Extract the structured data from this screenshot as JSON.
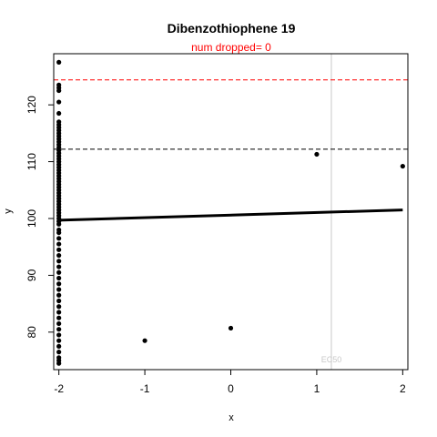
{
  "chart_data": {
    "type": "scatter",
    "title": "Dibenzothiophene 19",
    "subtitle": "num dropped= 0",
    "xlabel": "x",
    "ylabel": "y",
    "xlim": [
      -2.06,
      2.06
    ],
    "ylim": [
      73.4,
      129.0
    ],
    "x_ticks": [
      -2,
      -1,
      0,
      1,
      2
    ],
    "x_tick_labels": [
      "-2",
      "-1",
      "0",
      "1",
      "2"
    ],
    "y_ticks": [
      80,
      90,
      100,
      110,
      120
    ],
    "y_tick_labels": [
      "80",
      "90",
      "100",
      "110",
      "120"
    ],
    "grid": false,
    "legend": "none",
    "colors": {
      "points": "#000000",
      "fit_line": "#000000",
      "upper_threshold": "#ff0000",
      "lower_threshold": "#000000",
      "ec50_line": "#c8c8c8",
      "subtitle": "#ff0000"
    },
    "reference_lines": {
      "upper_dashed_y": 124.4,
      "lower_dashed_y": 112.2,
      "ec50_x": 1.17,
      "ec50_label": "EC50"
    },
    "fit_line": {
      "x": [
        -2,
        2
      ],
      "y": [
        99.7,
        101.5
      ]
    },
    "points": [
      {
        "x": -2,
        "y": 127.5
      },
      {
        "x": -2,
        "y": 123.5
      },
      {
        "x": -2,
        "y": 123.0
      },
      {
        "x": -2,
        "y": 122.5
      },
      {
        "x": -2,
        "y": 120.5
      },
      {
        "x": -2,
        "y": 118.5
      },
      {
        "x": -2,
        "y": 117.0
      },
      {
        "x": -2,
        "y": 116.5
      },
      {
        "x": -2,
        "y": 116.0
      },
      {
        "x": -2,
        "y": 115.5
      },
      {
        "x": -2,
        "y": 115.0
      },
      {
        "x": -2,
        "y": 114.5
      },
      {
        "x": -2,
        "y": 114.0
      },
      {
        "x": -2,
        "y": 113.5
      },
      {
        "x": -2,
        "y": 113.0
      },
      {
        "x": -2,
        "y": 112.5
      },
      {
        "x": -2,
        "y": 112.0
      },
      {
        "x": -2,
        "y": 111.5
      },
      {
        "x": -2,
        "y": 111.0
      },
      {
        "x": -2,
        "y": 110.5
      },
      {
        "x": -2,
        "y": 110.0
      },
      {
        "x": -2,
        "y": 109.5
      },
      {
        "x": -2,
        "y": 109.0
      },
      {
        "x": -2,
        "y": 108.5
      },
      {
        "x": -2,
        "y": 108.0
      },
      {
        "x": -2,
        "y": 107.5
      },
      {
        "x": -2,
        "y": 107.0
      },
      {
        "x": -2,
        "y": 106.5
      },
      {
        "x": -2,
        "y": 106.0
      },
      {
        "x": -2,
        "y": 105.5
      },
      {
        "x": -2,
        "y": 105.0
      },
      {
        "x": -2,
        "y": 104.5
      },
      {
        "x": -2,
        "y": 104.0
      },
      {
        "x": -2,
        "y": 103.5
      },
      {
        "x": -2,
        "y": 103.0
      },
      {
        "x": -2,
        "y": 102.5
      },
      {
        "x": -2,
        "y": 102.0
      },
      {
        "x": -2,
        "y": 101.5
      },
      {
        "x": -2,
        "y": 101.0
      },
      {
        "x": -2,
        "y": 100.5
      },
      {
        "x": -2,
        "y": 100.0
      },
      {
        "x": -2,
        "y": 99.5
      },
      {
        "x": -2,
        "y": 99.0
      },
      {
        "x": -2,
        "y": 98.0
      },
      {
        "x": -2,
        "y": 97.5
      },
      {
        "x": -2,
        "y": 96.5
      },
      {
        "x": -2,
        "y": 95.5
      },
      {
        "x": -2,
        "y": 94.5
      },
      {
        "x": -2,
        "y": 93.5
      },
      {
        "x": -2,
        "y": 92.5
      },
      {
        "x": -2,
        "y": 91.5
      },
      {
        "x": -2,
        "y": 90.5
      },
      {
        "x": -2,
        "y": 89.5
      },
      {
        "x": -2,
        "y": 88.5
      },
      {
        "x": -2,
        "y": 87.5
      },
      {
        "x": -2,
        "y": 86.5
      },
      {
        "x": -2,
        "y": 85.5
      },
      {
        "x": -2,
        "y": 84.5
      },
      {
        "x": -2,
        "y": 83.5
      },
      {
        "x": -2,
        "y": 82.5
      },
      {
        "x": -2,
        "y": 81.5
      },
      {
        "x": -2,
        "y": 80.5
      },
      {
        "x": -2,
        "y": 79.5
      },
      {
        "x": -2,
        "y": 78.5
      },
      {
        "x": -2,
        "y": 77.5
      },
      {
        "x": -2,
        "y": 76.5
      },
      {
        "x": -2,
        "y": 75.5
      },
      {
        "x": -2,
        "y": 75.0
      },
      {
        "x": -2,
        "y": 74.5
      },
      {
        "x": -1,
        "y": 78.5
      },
      {
        "x": 0,
        "y": 80.7
      },
      {
        "x": 1,
        "y": 111.3
      },
      {
        "x": 2,
        "y": 109.2
      }
    ]
  }
}
